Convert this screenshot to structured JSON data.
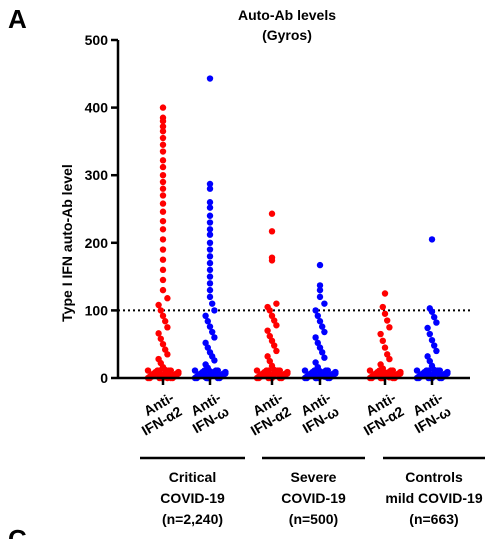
{
  "panel": {
    "letter": "A",
    "next_letter": "C"
  },
  "chart_data": {
    "type": "scatter",
    "title": [
      "Auto-Ab levels",
      "(Gyros)"
    ],
    "ylabel": "Type I IFN auto-Ab level",
    "ylim": [
      0,
      500
    ],
    "yticks": [
      0,
      100,
      200,
      300,
      400,
      500
    ],
    "threshold": 100,
    "threshold_style": "dotted",
    "categories": [
      {
        "line1": "Anti-",
        "line2": "IFN-α2",
        "color": "#ff0000"
      },
      {
        "line1": "Anti-",
        "line2": "IFN-ω",
        "color": "#0000ff"
      },
      {
        "line1": "Anti-",
        "line2": "IFN-α2",
        "color": "#ff0000"
      },
      {
        "line1": "Anti-",
        "line2": "IFN-ω",
        "color": "#0000ff"
      },
      {
        "line1": "Anti-",
        "line2": "IFN-α2",
        "color": "#ff0000"
      },
      {
        "line1": "Anti-",
        "line2": "IFN-ω",
        "color": "#0000ff"
      }
    ],
    "groups": [
      {
        "lines": [
          "Critical",
          "COVID-19",
          "(n=2,240)"
        ]
      },
      {
        "lines": [
          "Severe",
          "COVID-19",
          "(n=500)"
        ]
      },
      {
        "lines": [
          "Controls",
          "mild COVID-19",
          "(n=663)"
        ]
      }
    ],
    "series": [
      {
        "values": [
          400,
          385,
          380,
          372,
          365,
          355,
          345,
          335,
          322,
          312,
          300,
          290,
          280,
          270,
          258,
          246,
          232,
          220,
          205,
          190,
          175,
          160,
          145,
          130,
          118,
          108,
          100,
          92,
          84,
          75,
          66,
          58,
          50,
          42,
          35,
          28,
          22,
          16,
          12,
          8,
          5,
          3,
          2,
          1,
          0
        ]
      },
      {
        "values": [
          443,
          287,
          280,
          260,
          252,
          240,
          230,
          220,
          212,
          200,
          190,
          180,
          170,
          160,
          150,
          140,
          130,
          120,
          110,
          100,
          92,
          84,
          76,
          68,
          60,
          52,
          45,
          38,
          32,
          26,
          20,
          15,
          10,
          6,
          3,
          1,
          0
        ]
      },
      {
        "values": [
          243,
          217,
          178,
          174,
          110,
          105,
          100,
          92,
          85,
          78,
          70,
          62,
          55,
          48,
          40,
          32,
          25,
          18,
          12,
          7,
          3,
          1,
          0
        ]
      },
      {
        "values": [
          167,
          137,
          130,
          120,
          110,
          100,
          92,
          84,
          76,
          68,
          60,
          52,
          45,
          38,
          30,
          23,
          16,
          10,
          5,
          2,
          0
        ]
      },
      {
        "values": [
          125,
          105,
          95,
          85,
          75,
          65,
          55,
          45,
          35,
          28,
          20,
          14,
          8,
          4,
          1,
          0
        ]
      },
      {
        "values": [
          205,
          103,
          98,
          90,
          82,
          74,
          65,
          56,
          48,
          40,
          32,
          25,
          18,
          12,
          7,
          3,
          1,
          0
        ]
      }
    ]
  }
}
